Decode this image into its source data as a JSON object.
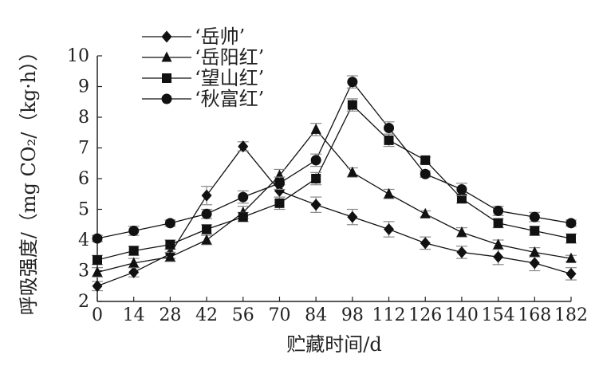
{
  "chart_data": {
    "type": "line",
    "xlabel": "贮藏时间/d",
    "ylabel": "呼吸强度/（mg CO₂/（kg·h））",
    "x": [
      0,
      14,
      28,
      42,
      56,
      70,
      84,
      98,
      112,
      126,
      140,
      154,
      168,
      182
    ],
    "x_ticks": [
      "0",
      "14",
      "28",
      "42",
      "56",
      "70",
      "84",
      "98",
      "112",
      "126",
      "140",
      "154",
      "168",
      "182"
    ],
    "ylim": [
      2,
      10
    ],
    "y_ticks": [
      "2",
      "3",
      "4",
      "5",
      "6",
      "7",
      "8",
      "9",
      "10"
    ],
    "legend_position": "top-left",
    "error_bars": true,
    "series": [
      {
        "name": "‘岳帅’",
        "marker": "diamond",
        "values": [
          2.5,
          2.95,
          3.55,
          5.45,
          7.05,
          5.6,
          5.15,
          4.75,
          4.35,
          3.9,
          3.6,
          3.45,
          3.25,
          2.9
        ],
        "errors": [
          0.15,
          0.15,
          0.15,
          0.3,
          0.15,
          0.2,
          0.25,
          0.25,
          0.25,
          0.2,
          0.2,
          0.25,
          0.25,
          0.2
        ]
      },
      {
        "name": "‘岳阳红’",
        "marker": "triangle",
        "values": [
          2.95,
          3.25,
          3.45,
          4.0,
          4.9,
          6.1,
          7.6,
          6.2,
          5.5,
          4.85,
          4.25,
          3.85,
          3.6,
          3.4
        ],
        "errors": [
          0.15,
          0.15,
          0.15,
          0.15,
          0.2,
          0.2,
          0.2,
          0.15,
          0.15,
          0.1,
          0.15,
          0.15,
          0.15,
          0.1
        ]
      },
      {
        "name": "‘望山红’",
        "marker": "square",
        "values": [
          3.35,
          3.65,
          3.85,
          4.35,
          4.75,
          5.2,
          6.0,
          8.4,
          7.25,
          6.6,
          5.35,
          4.55,
          4.3,
          4.05
        ],
        "errors": [
          0.15,
          0.15,
          0.15,
          0.15,
          0.15,
          0.2,
          0.2,
          0.2,
          0.2,
          0.1,
          0.15,
          0.15,
          0.15,
          0.15
        ]
      },
      {
        "name": "‘秋富红’",
        "marker": "circle",
        "values": [
          4.05,
          4.3,
          4.55,
          4.85,
          5.4,
          5.85,
          6.6,
          9.15,
          7.65,
          6.15,
          5.65,
          4.95,
          4.75,
          4.55
        ],
        "errors": [
          0.1,
          0.15,
          0.1,
          0.15,
          0.2,
          0.2,
          0.2,
          0.2,
          0.2,
          0.1,
          0.2,
          0.15,
          0.15,
          0.1
        ]
      }
    ]
  }
}
